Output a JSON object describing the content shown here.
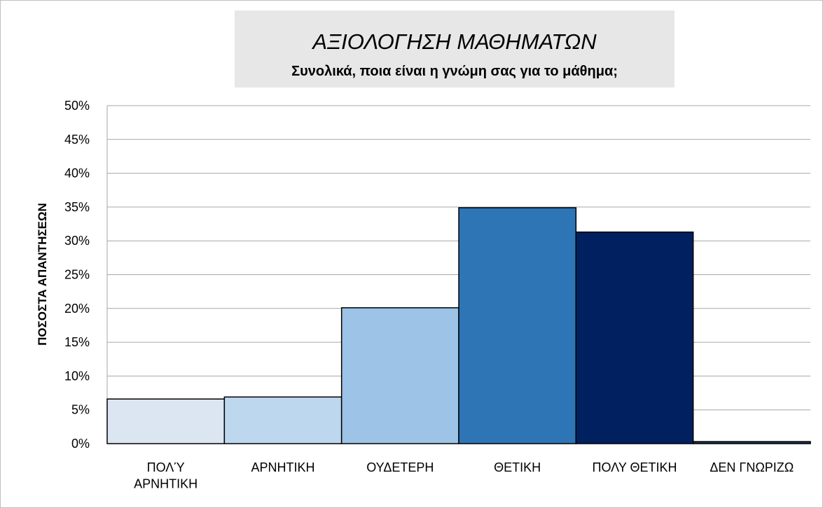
{
  "chart_data": {
    "type": "bar",
    "title": "ΑΞΙΟΛΟΓΗΣΗ ΜΑΘΗΜΑΤΩΝ",
    "subtitle": "Συνολικά, ποια είναι η γνώμη σας για το μάθημα;",
    "y_label": "ΠΟΣΟΣΤΑ ΑΠΑΝΤΗΣΕΩΝ",
    "categories": [
      "ΠΟΛΎ\nΑΡΝΗΤΙΚΗ",
      "ΑΡΝΗΤΙΚΗ",
      "ΟΥΔΕΤΕΡΗ",
      "ΘΕΤΙΚΗ",
      "ΠΟΛΥ ΘΕΤΙΚΗ",
      "ΔΕΝ ΓΝΩΡΙΖΩ"
    ],
    "values": [
      6.6,
      6.9,
      20.1,
      34.9,
      31.3,
      0.3
    ],
    "colors": [
      "#dce6f2",
      "#bdd7ee",
      "#9dc3e6",
      "#2e75b6",
      "#002060",
      "#1f3864"
    ],
    "ylim": [
      0,
      50
    ],
    "yticks": [
      {
        "value": 0,
        "label": "0%"
      },
      {
        "value": 5,
        "label": "5%"
      },
      {
        "value": 10,
        "label": "10%"
      },
      {
        "value": 15,
        "label": "15%"
      },
      {
        "value": 20,
        "label": "20%"
      },
      {
        "value": 25,
        "label": "25%"
      },
      {
        "value": 30,
        "label": "30%"
      },
      {
        "value": 35,
        "label": "35%"
      },
      {
        "value": 40,
        "label": "40%"
      },
      {
        "value": 45,
        "label": "45%"
      },
      {
        "value": 50,
        "label": "50%"
      }
    ],
    "grid": true
  }
}
